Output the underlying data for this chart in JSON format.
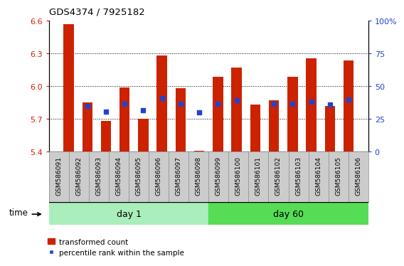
{
  "title": "GDS4374 / 7925182",
  "samples": [
    "GSM586091",
    "GSM586092",
    "GSM586093",
    "GSM586094",
    "GSM586095",
    "GSM586096",
    "GSM586097",
    "GSM586098",
    "GSM586099",
    "GSM586100",
    "GSM586101",
    "GSM586102",
    "GSM586103",
    "GSM586104",
    "GSM586105",
    "GSM586106"
  ],
  "red_values": [
    6.57,
    5.85,
    5.68,
    5.99,
    5.7,
    6.28,
    5.98,
    5.41,
    6.09,
    6.17,
    5.83,
    5.87,
    6.09,
    6.26,
    5.82,
    6.24
  ],
  "blue_values": [
    null,
    5.82,
    5.77,
    5.84,
    5.78,
    5.89,
    5.84,
    5.76,
    5.84,
    5.87,
    null,
    5.84,
    5.84,
    5.86,
    5.83,
    5.88
  ],
  "day1_samples": 8,
  "day60_samples": 8,
  "ylim_left": [
    5.4,
    6.6
  ],
  "ylim_right": [
    0,
    100
  ],
  "yticks_left": [
    5.4,
    5.7,
    6.0,
    6.3,
    6.6
  ],
  "yticks_right": [
    0,
    25,
    50,
    75,
    100
  ],
  "bar_color": "#cc2200",
  "blue_color": "#2244cc",
  "day1_color": "#aaeebb",
  "day60_color": "#55dd55",
  "bg_color": "#cccccc",
  "bar_width": 0.55,
  "base": 5.4,
  "grid_yticks": [
    5.7,
    6.0,
    6.3
  ]
}
